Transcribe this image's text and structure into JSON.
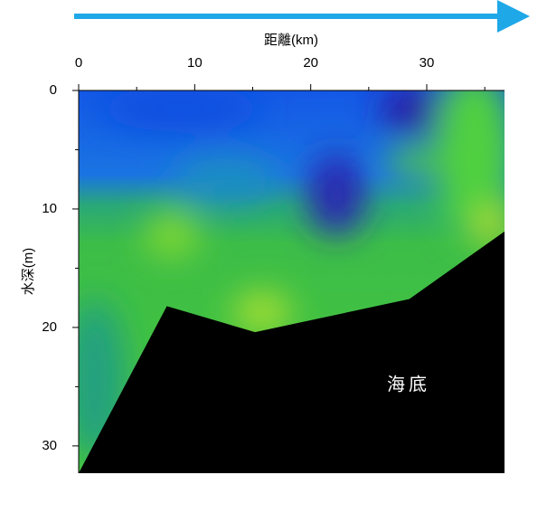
{
  "chart_data": {
    "type": "area",
    "xlabel": "距離(km)",
    "ylabel": "水深(m)",
    "annotation": "海底",
    "xlim": [
      0,
      36.7
    ],
    "xticks": [
      0,
      10,
      20,
      30
    ],
    "xminor_ticks": [
      5,
      15,
      25,
      35
    ],
    "ylim": [
      0,
      32.3
    ],
    "yticks": [
      0,
      10,
      20,
      30
    ],
    "yminor_ticks": [
      5,
      15,
      25
    ],
    "y_inverted": true,
    "seafloor": {
      "color": "#000000",
      "x": [
        0,
        7.6,
        15.2,
        28.5,
        36.7
      ],
      "depth": [
        32.3,
        18.2,
        20.4,
        17.6,
        11.9
      ]
    }
  }
}
